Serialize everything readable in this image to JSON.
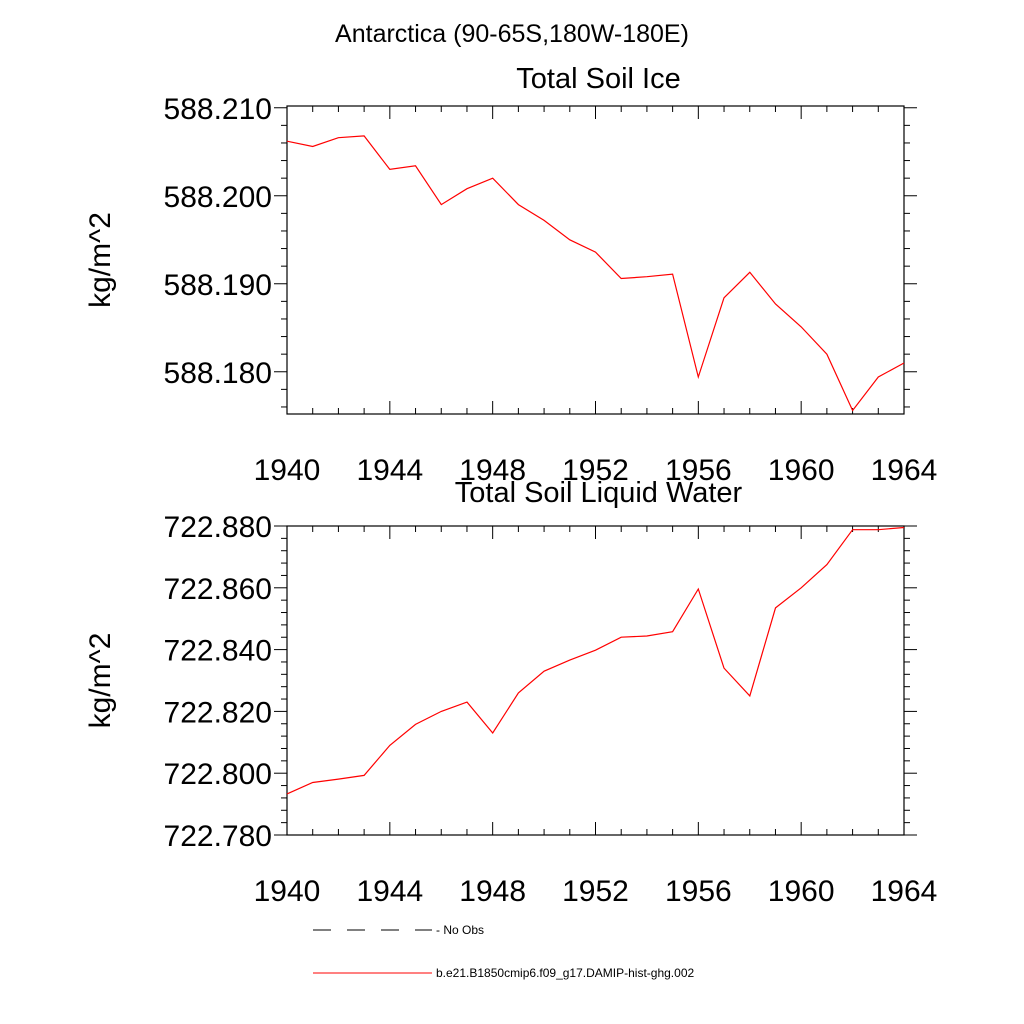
{
  "figure": {
    "suptitle": "Antarctica (90-65S,180W-180E)"
  },
  "legend": {
    "items": [
      {
        "label": "No Obs",
        "color": "#000000",
        "dash": true
      },
      {
        "label": "b.e21.B1850cmip6.f09_g17.DAMIP-hist-ghg.002",
        "color": "#ff0000",
        "dash": false
      }
    ]
  },
  "chart_data": [
    {
      "type": "line",
      "title": "Total Soil Ice",
      "xlabel": "",
      "ylabel": "kg/m^2",
      "xlim": [
        1940,
        1964
      ],
      "ylim": [
        588.1752,
        588.2102
      ],
      "x_ticks": [
        1940,
        1944,
        1948,
        1952,
        1956,
        1960,
        1964
      ],
      "y_ticks": [
        588.18,
        588.19,
        588.2,
        588.21
      ],
      "y_tick_labels": [
        "588.180",
        "588.190",
        "588.200",
        "588.210"
      ],
      "grid": false,
      "series": [
        {
          "name": "b.e21.B1850cmip6.f09_g17.DAMIP-hist-ghg.002",
          "color": "#ff0000",
          "x": [
            1940,
            1941,
            1942,
            1943,
            1944,
            1945,
            1946,
            1947,
            1948,
            1949,
            1950,
            1951,
            1952,
            1953,
            1954,
            1955,
            1956,
            1957,
            1958,
            1959,
            1960,
            1961,
            1962,
            1963,
            1964
          ],
          "y": [
            588.2062,
            588.2056,
            588.2066,
            588.2068,
            588.203,
            588.2034,
            588.199,
            588.2008,
            588.202,
            588.199,
            588.1972,
            588.195,
            588.1936,
            588.1906,
            588.1908,
            588.1911,
            588.1794,
            588.1884,
            588.1913,
            588.1877,
            588.1851,
            588.182,
            588.1756,
            588.1794,
            588.181
          ]
        }
      ]
    },
    {
      "type": "line",
      "title": "Total Soil Liquid Water",
      "xlabel": "",
      "ylabel": "kg/m^2",
      "xlim": [
        1940,
        1964
      ],
      "ylim": [
        722.78,
        722.88
      ],
      "x_ticks": [
        1940,
        1944,
        1948,
        1952,
        1956,
        1960,
        1964
      ],
      "y_ticks": [
        722.78,
        722.8,
        722.82,
        722.84,
        722.86,
        722.88
      ],
      "y_tick_labels": [
        "722.780",
        "722.800",
        "722.820",
        "722.840",
        "722.860",
        "722.880"
      ],
      "grid": false,
      "series": [
        {
          "name": "b.e21.B1850cmip6.f09_g17.DAMIP-hist-ghg.002",
          "color": "#ff0000",
          "x": [
            1940,
            1941,
            1942,
            1943,
            1944,
            1945,
            1946,
            1947,
            1948,
            1949,
            1950,
            1951,
            1952,
            1953,
            1954,
            1955,
            1956,
            1957,
            1958,
            1959,
            1960,
            1961,
            1962,
            1963,
            1964
          ],
          "y": [
            722.7933,
            722.797,
            722.7981,
            722.7993,
            722.809,
            722.8158,
            722.82,
            722.823,
            722.813,
            722.826,
            722.833,
            722.8366,
            722.8398,
            722.844,
            722.8444,
            722.8458,
            722.8596,
            722.834,
            722.825,
            722.8535,
            722.86,
            722.8675,
            722.8788,
            722.8788,
            722.8795
          ]
        }
      ]
    }
  ]
}
